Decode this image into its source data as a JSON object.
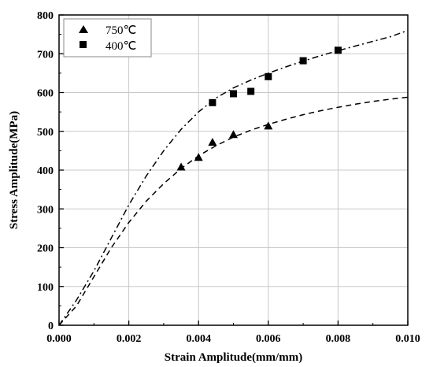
{
  "chart_data": {
    "type": "scatter",
    "xlabel": "Strain Amplitude(mm/mm)",
    "ylabel": "Stress Amplitude(MPa)",
    "xlim": [
      0,
      0.01
    ],
    "ylim": [
      0,
      800
    ],
    "xticks": [
      0,
      0.002,
      0.004,
      0.006,
      0.008,
      0.01
    ],
    "xtick_labels": [
      "0.000",
      "0.002",
      "0.004",
      "0.006",
      "0.008",
      "0.010"
    ],
    "yticks": [
      0,
      100,
      200,
      300,
      400,
      500,
      600,
      700,
      800
    ],
    "ytick_labels": [
      "0",
      "100",
      "200",
      "300",
      "400",
      "500",
      "600",
      "700",
      "800"
    ],
    "grid": true,
    "legend_position": "top-left",
    "series": [
      {
        "name": "750℃",
        "marker": "triangle",
        "line_style": "dashed",
        "color": "#000000",
        "points": [
          {
            "x": 0.0035,
            "y": 408
          },
          {
            "x": 0.004,
            "y": 433
          },
          {
            "x": 0.0044,
            "y": 472
          },
          {
            "x": 0.005,
            "y": 492
          },
          {
            "x": 0.006,
            "y": 514
          }
        ],
        "fit_curve": [
          {
            "x": 0.0,
            "y": 0
          },
          {
            "x": 0.0005,
            "y": 50
          },
          {
            "x": 0.001,
            "y": 125
          },
          {
            "x": 0.0015,
            "y": 200
          },
          {
            "x": 0.002,
            "y": 265
          },
          {
            "x": 0.0025,
            "y": 320
          },
          {
            "x": 0.003,
            "y": 365
          },
          {
            "x": 0.0035,
            "y": 404
          },
          {
            "x": 0.004,
            "y": 437
          },
          {
            "x": 0.0045,
            "y": 463
          },
          {
            "x": 0.005,
            "y": 485
          },
          {
            "x": 0.0055,
            "y": 503
          },
          {
            "x": 0.006,
            "y": 518
          },
          {
            "x": 0.0065,
            "y": 531
          },
          {
            "x": 0.007,
            "y": 543
          },
          {
            "x": 0.0075,
            "y": 553
          },
          {
            "x": 0.008,
            "y": 562
          },
          {
            "x": 0.0085,
            "y": 570
          },
          {
            "x": 0.009,
            "y": 577
          },
          {
            "x": 0.0095,
            "y": 583
          },
          {
            "x": 0.01,
            "y": 588
          }
        ]
      },
      {
        "name": "400℃",
        "marker": "square",
        "line_style": "dash-dot",
        "color": "#000000",
        "points": [
          {
            "x": 0.0044,
            "y": 574
          },
          {
            "x": 0.005,
            "y": 597
          },
          {
            "x": 0.0055,
            "y": 603
          },
          {
            "x": 0.006,
            "y": 641
          },
          {
            "x": 0.007,
            "y": 682
          },
          {
            "x": 0.008,
            "y": 709
          }
        ],
        "fit_curve": [
          {
            "x": 0.0,
            "y": 0
          },
          {
            "x": 0.0005,
            "y": 65
          },
          {
            "x": 0.001,
            "y": 140
          },
          {
            "x": 0.0015,
            "y": 225
          },
          {
            "x": 0.002,
            "y": 310
          },
          {
            "x": 0.0025,
            "y": 385
          },
          {
            "x": 0.003,
            "y": 450
          },
          {
            "x": 0.0035,
            "y": 505
          },
          {
            "x": 0.004,
            "y": 550
          },
          {
            "x": 0.0045,
            "y": 586
          },
          {
            "x": 0.005,
            "y": 612
          },
          {
            "x": 0.0055,
            "y": 632
          },
          {
            "x": 0.006,
            "y": 650
          },
          {
            "x": 0.0065,
            "y": 666
          },
          {
            "x": 0.007,
            "y": 681
          },
          {
            "x": 0.0075,
            "y": 695
          },
          {
            "x": 0.008,
            "y": 708
          },
          {
            "x": 0.0085,
            "y": 720
          },
          {
            "x": 0.009,
            "y": 732
          },
          {
            "x": 0.0095,
            "y": 744
          },
          {
            "x": 0.01,
            "y": 760
          }
        ]
      }
    ]
  }
}
